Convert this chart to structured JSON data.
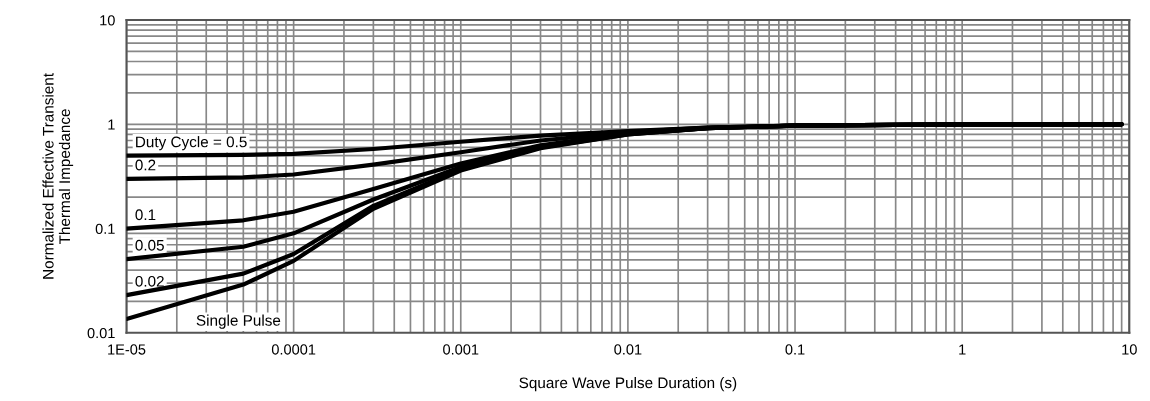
{
  "chart_data": {
    "type": "line",
    "xlabel": "Square Wave Pulse Duration (s)",
    "ylabel": "Normalized Effective Transient\nThermal Impedance",
    "x": [
      1e-05,
      5e-05,
      0.0001,
      0.0003,
      0.001,
      0.003,
      0.01,
      0.03,
      0.1,
      1,
      9
    ],
    "series": [
      {
        "name": "Duty Cycle = 0.5",
        "color": "#000000",
        "values": [
          0.5,
          0.51,
          0.52,
          0.58,
          0.68,
          0.78,
          0.86,
          0.93,
          0.97,
          1.0,
          1.0
        ]
      },
      {
        "name": "0.2",
        "color": "#000000",
        "values": [
          0.3,
          0.31,
          0.33,
          0.41,
          0.54,
          0.7,
          0.84,
          0.93,
          0.97,
          1.0,
          1.0
        ]
      },
      {
        "name": "0.1",
        "color": "#000000",
        "values": [
          0.1,
          0.12,
          0.145,
          0.24,
          0.42,
          0.63,
          0.82,
          0.92,
          0.97,
          1.0,
          1.0
        ]
      },
      {
        "name": "0.05",
        "color": "#000000",
        "values": [
          0.051,
          0.067,
          0.09,
          0.19,
          0.39,
          0.61,
          0.81,
          0.92,
          0.97,
          1.0,
          1.0
        ]
      },
      {
        "name": "0.02",
        "color": "#000000",
        "values": [
          0.023,
          0.037,
          0.057,
          0.165,
          0.37,
          0.6,
          0.8,
          0.92,
          0.97,
          1.0,
          1.0
        ]
      },
      {
        "name": "Single Pulse",
        "color": "#000000",
        "values": [
          0.0136,
          0.029,
          0.049,
          0.155,
          0.36,
          0.59,
          0.8,
          0.92,
          0.97,
          1.0,
          1.0
        ]
      }
    ],
    "log": "xy",
    "xlim": [
      1e-05,
      10
    ],
    "ylim": [
      0.01,
      10
    ],
    "xticks": [
      {
        "value": 1e-05,
        "label": "1E-05"
      },
      0.0001,
      0.001,
      0.01,
      0.1,
      1,
      10
    ],
    "yticks": [
      0.01,
      0.1,
      1,
      10
    ],
    "grid": true,
    "legend": false,
    "marker": "none",
    "line_style": "solid"
  }
}
